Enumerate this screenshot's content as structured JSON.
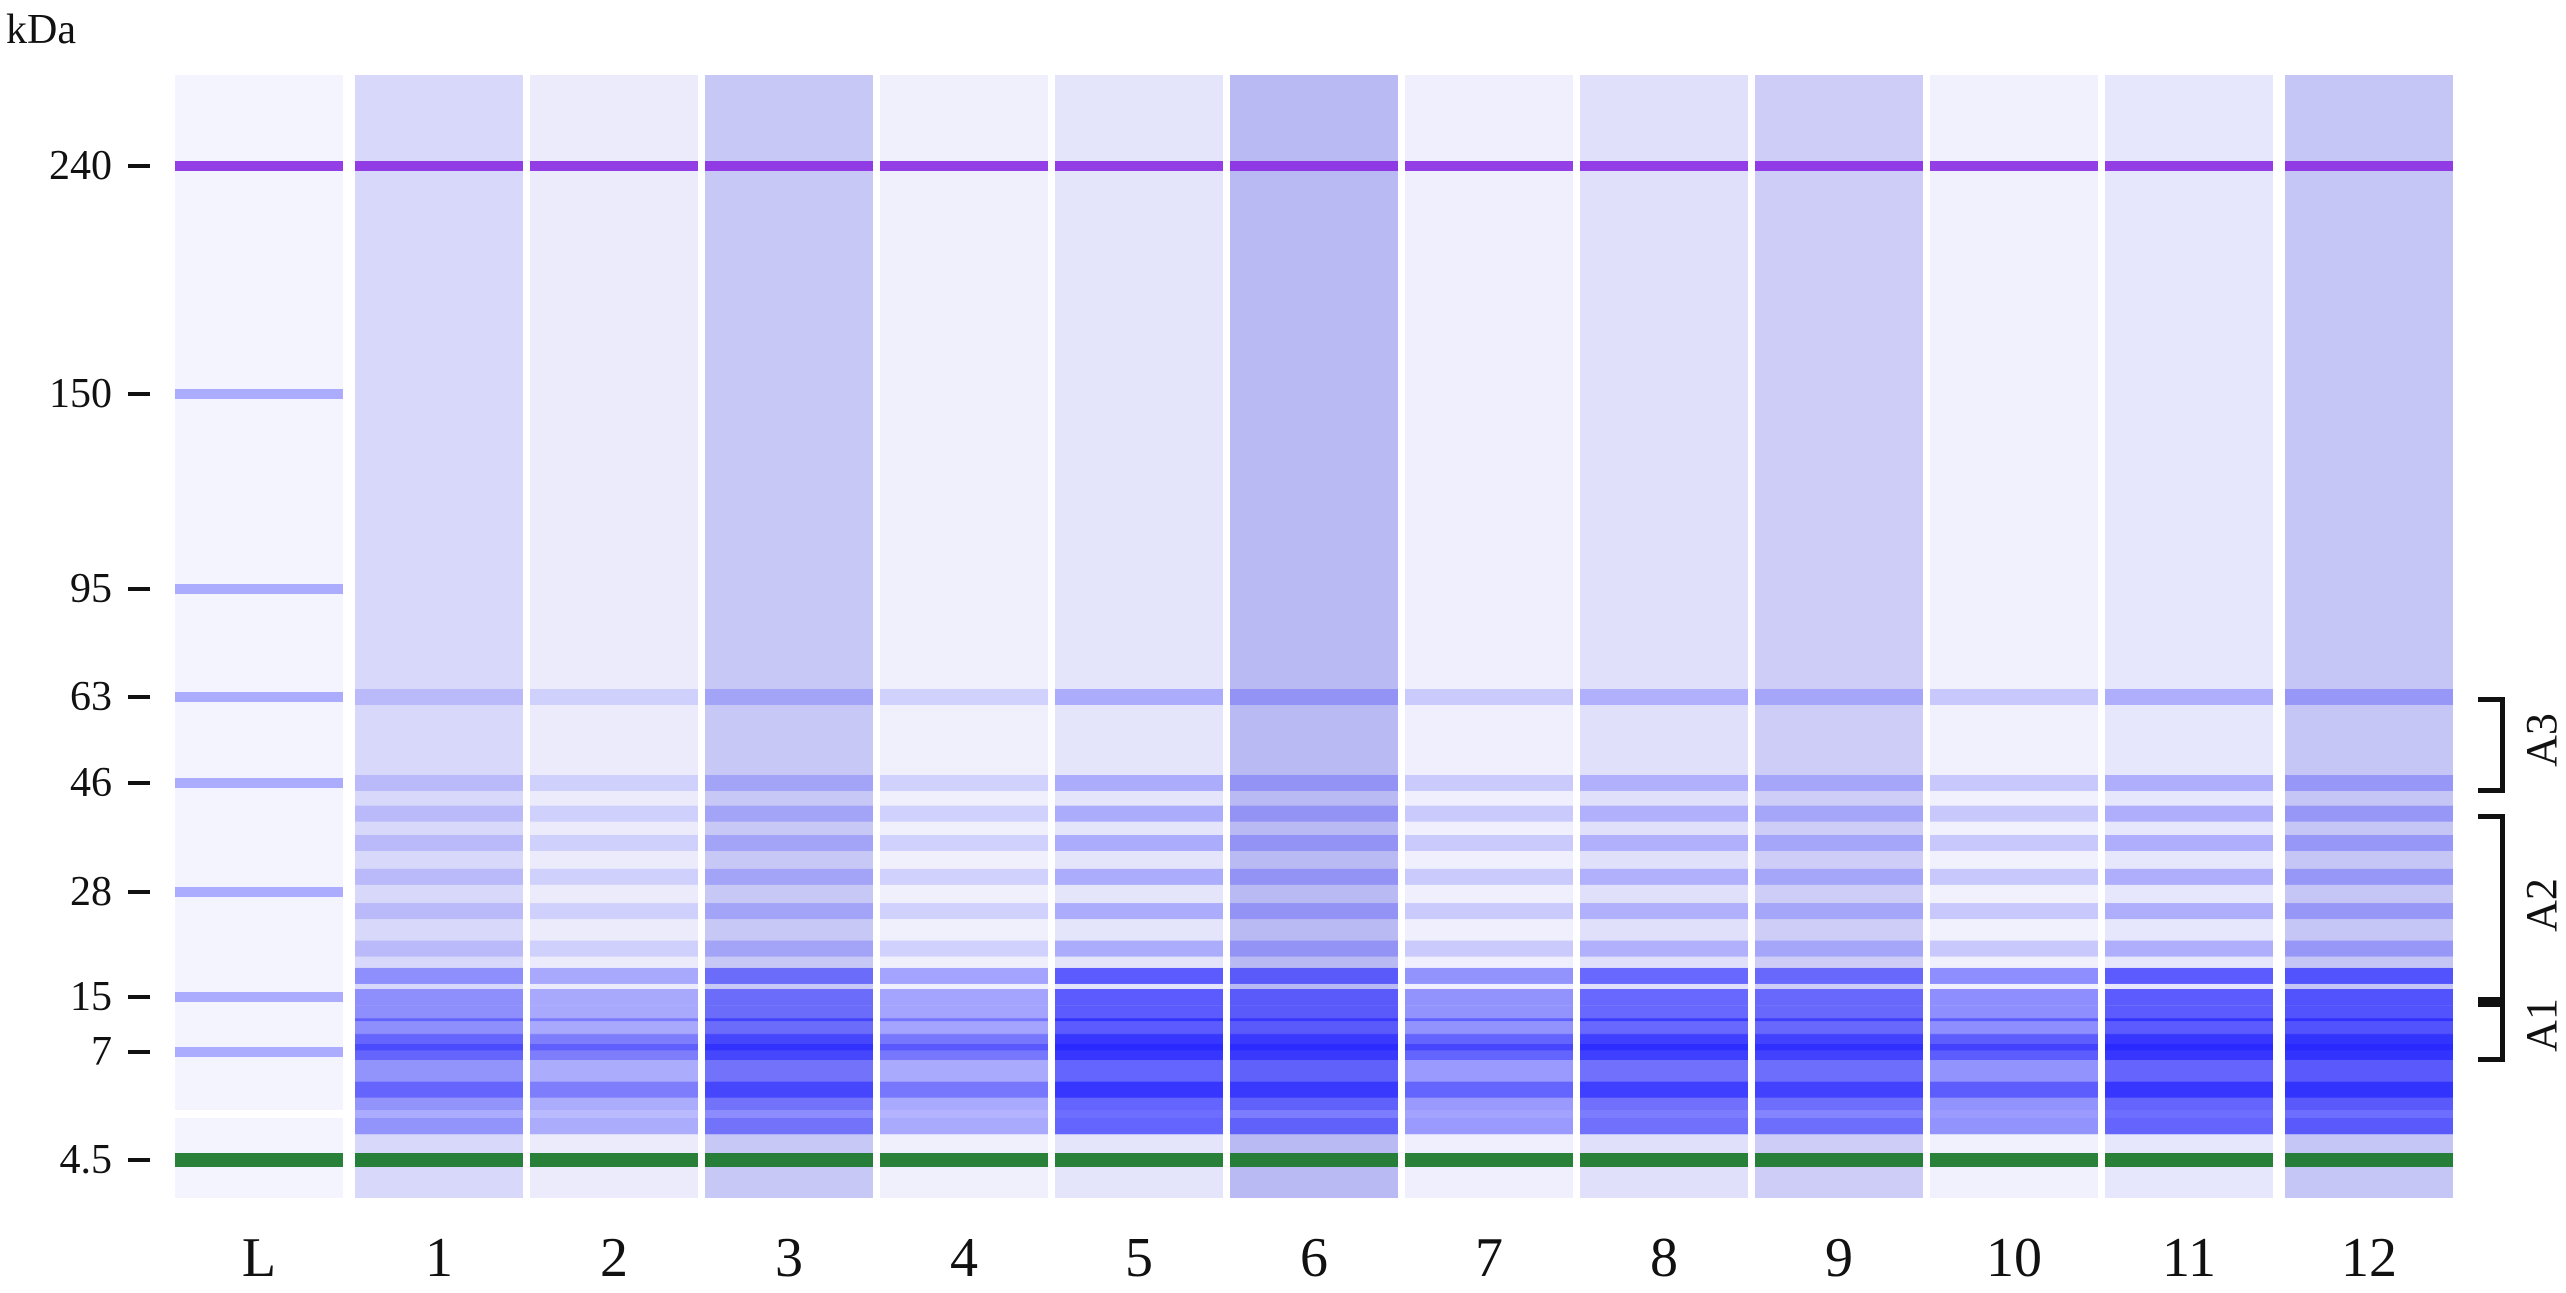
{
  "axis_unit": "kDa",
  "markers": [
    {
      "label": "240",
      "kda": 240
    },
    {
      "label": "150",
      "kda": 150
    },
    {
      "label": "95",
      "kda": 95
    },
    {
      "label": "63",
      "kda": 63
    },
    {
      "label": "46",
      "kda": 46
    },
    {
      "label": "28",
      "kda": 28
    },
    {
      "label": "15",
      "kda": 15
    },
    {
      "label": "7",
      "kda": 7
    },
    {
      "label": "4.5",
      "kda": 4.5
    }
  ],
  "lanes": [
    {
      "label": "L",
      "bg": "#f4f4ff",
      "intensity": 0.1,
      "ladder": true
    },
    {
      "label": "1",
      "bg": "#d8d8fa",
      "intensity": 0.55
    },
    {
      "label": "2",
      "bg": "#ebebfc",
      "intensity": 0.45
    },
    {
      "label": "3",
      "bg": "#c8c8f6",
      "intensity": 0.75
    },
    {
      "label": "4",
      "bg": "#f0f0fd",
      "intensity": 0.5
    },
    {
      "label": "5",
      "bg": "#e4e4fb",
      "intensity": 0.95
    },
    {
      "label": "6",
      "bg": "#b9b9f3",
      "intensity": 0.85
    },
    {
      "label": "7",
      "bg": "#efeffd",
      "intensity": 0.6
    },
    {
      "label": "8",
      "bg": "#e0e0fb",
      "intensity": 0.85
    },
    {
      "label": "9",
      "bg": "#cdcdf7",
      "intensity": 0.8
    },
    {
      "label": "10",
      "bg": "#f1f1fd",
      "intensity": 0.65
    },
    {
      "label": "11",
      "bg": "#e6e6fc",
      "intensity": 0.95
    },
    {
      "label": "12",
      "bg": "#c6c6f6",
      "intensity": 0.95
    }
  ],
  "upper_marker_color": "#8a2be2",
  "lower_marker_color": "#1f7a2e",
  "band_color": "#2424ff",
  "regions": [
    {
      "label": "A3",
      "from_kda": 63,
      "to_kda": 46
    },
    {
      "label": "A2",
      "from_kda": 40,
      "to_kda": 15
    },
    {
      "label": "A1",
      "from_kda": 15,
      "to_kda": 7
    }
  ]
}
